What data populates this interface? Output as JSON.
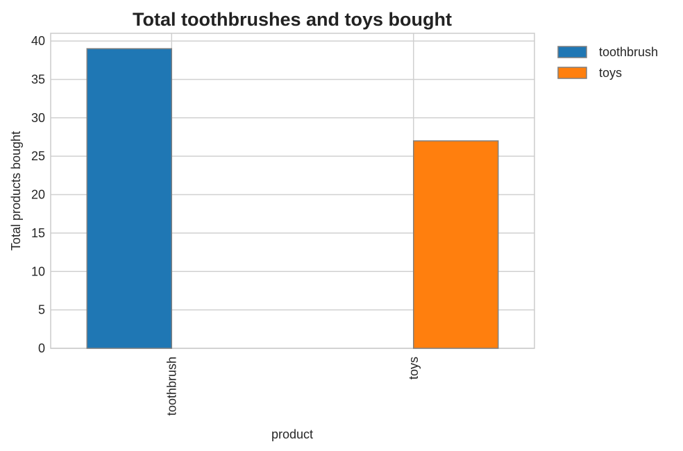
{
  "chart_data": {
    "type": "bar",
    "title": "Total toothbrushes and toys bought",
    "xlabel": "product",
    "ylabel": "Total products bought",
    "categories": [
      "toothbrush",
      "toys"
    ],
    "series": [
      {
        "name": "toothbrush",
        "values": [
          39,
          0
        ],
        "color": "#1f77b4"
      },
      {
        "name": "toys",
        "values": [
          0,
          27
        ],
        "color": "#ff7f0e"
      }
    ],
    "ylim": [
      0,
      41
    ],
    "yticks": [
      0,
      5,
      10,
      15,
      20,
      25,
      30,
      35,
      40
    ],
    "grid": true,
    "legend_position": "outside-top-right",
    "bar_edge_color": "#7f7f7f",
    "grid_color": "#d0d0d0"
  }
}
